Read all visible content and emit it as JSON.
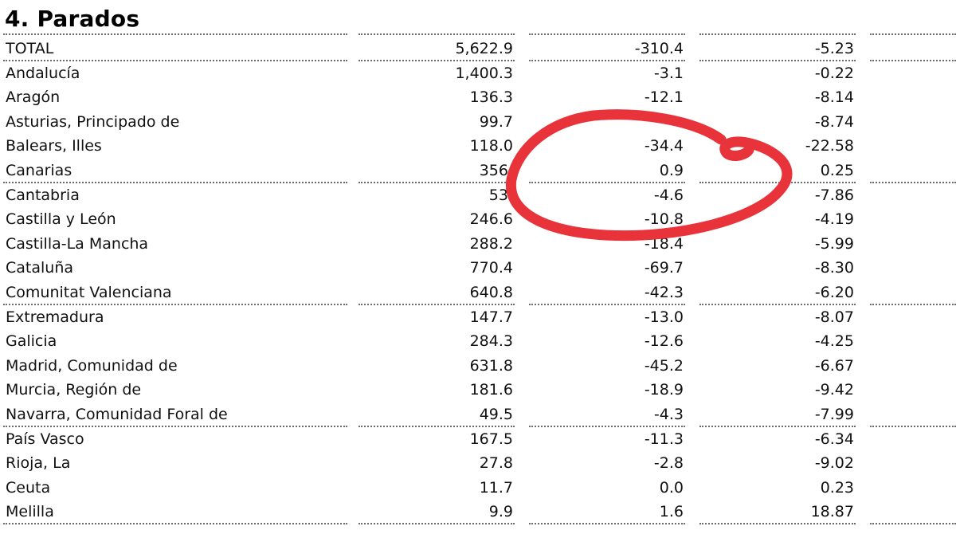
{
  "title": "4. Parados",
  "rows": [
    {
      "name": "TOTAL",
      "v1": "5,622.9",
      "v2": "-310.4",
      "v3": "-5.23",
      "sep": true
    },
    {
      "name": "Andalucía",
      "v1": "1,400.3",
      "v2": "-3.1",
      "v3": "-0.22",
      "sep": false
    },
    {
      "name": "Aragón",
      "v1": "136.3",
      "v2": "-12.1",
      "v3": "-8.14",
      "sep": false
    },
    {
      "name": "Asturias, Principado de",
      "v1": "99.7",
      "v2": "",
      "v3": "-8.74",
      "sep": false
    },
    {
      "name": "Balears, Illes",
      "v1": "118.0",
      "v2": "-34.4",
      "v3": "-22.58",
      "sep": false
    },
    {
      "name": "Canarias",
      "v1": "356.",
      "v2": "0.9",
      "v3": "0.25",
      "sep": true
    },
    {
      "name": "Cantabria",
      "v1": "53.",
      "v2": "-4.6",
      "v3": "-7.86",
      "sep": false
    },
    {
      "name": "Castilla y León",
      "v1": "246.6",
      "v2": "-10.8",
      "v3": "-4.19",
      "sep": false
    },
    {
      "name": "Castilla-La Mancha",
      "v1": "288.2",
      "v2": "-18.4",
      "v3": "-5.99",
      "sep": false
    },
    {
      "name": "Cataluña",
      "v1": "770.4",
      "v2": "-69.7",
      "v3": "-8.30",
      "sep": false
    },
    {
      "name": "Comunitat Valenciana",
      "v1": "640.8",
      "v2": "-42.3",
      "v3": "-6.20",
      "sep": true
    },
    {
      "name": "Extremadura",
      "v1": "147.7",
      "v2": "-13.0",
      "v3": "-8.07",
      "sep": false
    },
    {
      "name": "Galicia",
      "v1": "284.3",
      "v2": "-12.6",
      "v3": "-4.25",
      "sep": false
    },
    {
      "name": "Madrid, Comunidad de",
      "v1": "631.8",
      "v2": "-45.2",
      "v3": "-6.67",
      "sep": false
    },
    {
      "name": "Murcia, Región de",
      "v1": "181.6",
      "v2": "-18.9",
      "v3": "-9.42",
      "sep": false
    },
    {
      "name": "Navarra, Comunidad Foral de",
      "v1": "49.5",
      "v2": "-4.3",
      "v3": "-7.99",
      "sep": true
    },
    {
      "name": "País Vasco",
      "v1": "167.5",
      "v2": "-11.3",
      "v3": "-6.34",
      "sep": false
    },
    {
      "name": "Rioja, La",
      "v1": "27.8",
      "v2": "-2.8",
      "v3": "-9.02",
      "sep": false
    },
    {
      "name": "Ceuta",
      "v1": "11.7",
      "v2": "0.0",
      "v3": "0.23",
      "sep": false
    },
    {
      "name": "Melilla",
      "v1": "9.9",
      "v2": "1.6",
      "v3": "18.87",
      "sep": true
    }
  ],
  "colors": {
    "annotation": "#e8333a",
    "separator": "#6b6b6b",
    "text": "#111111"
  },
  "annotation": {
    "shape": "hand-drawn-circle"
  }
}
